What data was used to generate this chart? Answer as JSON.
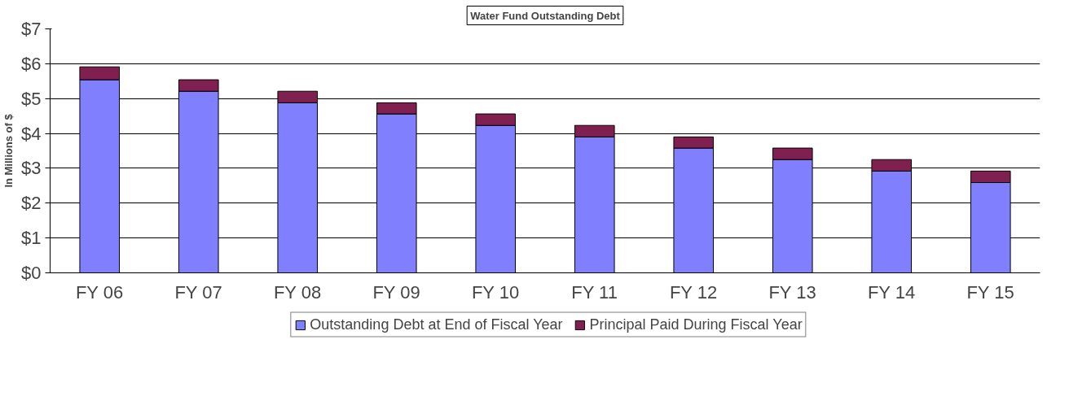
{
  "chart_data": {
    "type": "bar",
    "title": "Water Fund Outstanding Debt",
    "ylabel": "In Millions of $",
    "categories": [
      "FY 06",
      "FY 07",
      "FY 08",
      "FY 09",
      "FY 10",
      "FY 11",
      "FY 12",
      "FY 13",
      "FY 14",
      "FY 15"
    ],
    "stacked": true,
    "series": [
      {
        "name": "Outstanding Debt at End of Fiscal Year",
        "color": "#8080ff",
        "values": [
          5.54,
          5.21,
          4.88,
          4.56,
          4.23,
          3.9,
          3.58,
          3.25,
          2.92,
          2.59
        ]
      },
      {
        "name": "Principal Paid During Fiscal Year",
        "color": "#802050",
        "values": [
          0.37,
          0.33,
          0.33,
          0.32,
          0.33,
          0.33,
          0.32,
          0.33,
          0.33,
          0.33
        ]
      }
    ],
    "ylim": [
      0,
      7
    ],
    "yticks": [
      {
        "value": 0,
        "label": "$0"
      },
      {
        "value": 1,
        "label": "$1"
      },
      {
        "value": 2,
        "label": "$2"
      },
      {
        "value": 3,
        "label": "$3"
      },
      {
        "value": 4,
        "label": "$4"
      },
      {
        "value": 5,
        "label": "$5"
      },
      {
        "value": 6,
        "label": "$6"
      },
      {
        "value": 7,
        "label": "$7"
      }
    ],
    "grid": "y",
    "legend": "bottom"
  }
}
